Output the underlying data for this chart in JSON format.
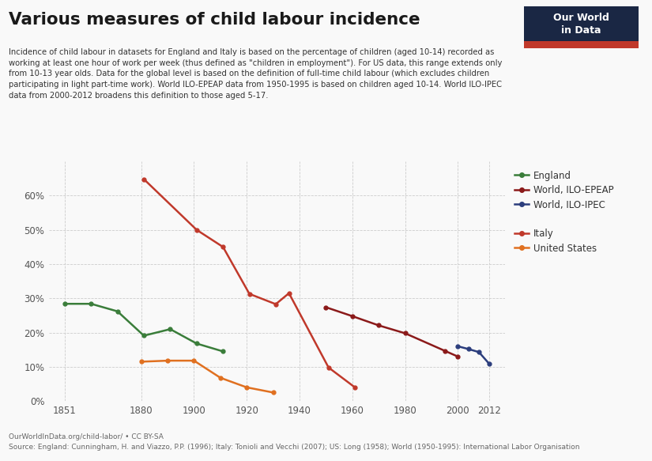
{
  "title": "Various measures of child labour incidence",
  "subtitle": "Incidence of child labour in datasets for England and Italy is based on the percentage of children (aged 10-14) recorded as\nworking at least one hour of work per week (thus defined as \"children in employment\"). For US data, this range extends only\nfrom 10-13 year olds. Data for the global level is based on the definition of full-time child labour (which excludes children\nparticipating in light part-time work). World ILO-EPEAP data from 1950-1995 is based on children aged 10-14. World ILO-IPEC\ndata from 2000-2012 broadens this definition to those aged 5-17.",
  "footer_line1": "OurWorldInData.org/child-labor/ • CC BY-SA",
  "footer_line2": "Source: England: Cunningham, H. and Viazzo, P.P. (1996); Italy: Tonioli and Vecchi (2007); US: Long (1958); World (1950-1995): International Labor Organisation",
  "england": {
    "x": [
      1851,
      1861,
      1871,
      1881,
      1891,
      1901,
      1911
    ],
    "y": [
      0.284,
      0.284,
      0.262,
      0.191,
      0.21,
      0.168,
      0.145
    ],
    "color": "#3a7d3a",
    "label": "England"
  },
  "italy": {
    "x": [
      1881,
      1901,
      1911,
      1921,
      1931,
      1936,
      1951,
      1961
    ],
    "y": [
      0.648,
      0.5,
      0.45,
      0.313,
      0.283,
      0.315,
      0.098,
      0.04
    ],
    "color": "#c0392b",
    "label": "Italy"
  },
  "us": {
    "x": [
      1880,
      1890,
      1900,
      1910,
      1920,
      1930
    ],
    "y": [
      0.115,
      0.118,
      0.118,
      0.068,
      0.04,
      0.025
    ],
    "color": "#e07020",
    "label": "United States"
  },
  "world_epeap": {
    "x": [
      1950,
      1960,
      1970,
      1980,
      1995,
      2000
    ],
    "y": [
      0.274,
      0.248,
      0.221,
      0.198,
      0.147,
      0.13
    ],
    "color": "#8b1a1a",
    "label": "World, ILO-EPEAP"
  },
  "world_ipec": {
    "x": [
      2000,
      2004,
      2008,
      2012
    ],
    "y": [
      0.16,
      0.152,
      0.143,
      0.108
    ],
    "color": "#2c3e7d",
    "label": "World, ILO-IPEC"
  },
  "xlim": [
    1845,
    2018
  ],
  "ylim": [
    0,
    0.7
  ],
  "ytick_vals": [
    0.0,
    0.1,
    0.2,
    0.3,
    0.4,
    0.5,
    0.6
  ],
  "ytick_labels": [
    "0%",
    "10%",
    "20%",
    "30%",
    "40%",
    "50%",
    "60%"
  ],
  "xtick_positions": [
    1851,
    1880,
    1900,
    1920,
    1940,
    1960,
    1980,
    2000,
    2012
  ],
  "xtick_labels": [
    "1851",
    "1880",
    "1900",
    "1920",
    "1940",
    "1960",
    "1980",
    "2000",
    "2012"
  ],
  "background_color": "#f9f9f9",
  "grid_color": "#cccccc",
  "logo_top_color": "#1a2744",
  "logo_bottom_color": "#c0392b",
  "logo_text": "Our World\nin Data"
}
